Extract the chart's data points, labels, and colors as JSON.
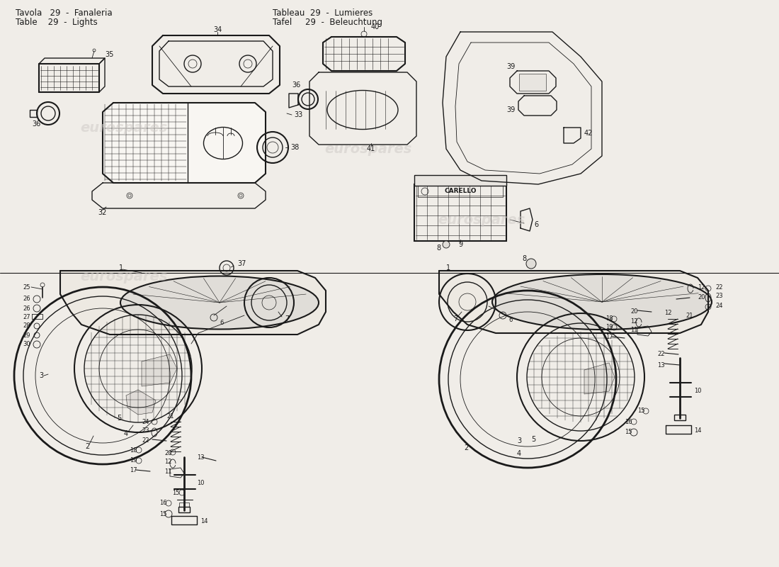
{
  "bg_color": "#f0ede8",
  "line_color": "#1a1a1a",
  "watermark_color": "#d0ccc8",
  "watermark_text": "eurospares",
  "header_fontsize": 8.5,
  "fig_width": 11.0,
  "fig_height": 8.0,
  "dpi": 100,
  "title_left_col": [
    "Tavola   29  -  Fanaleria",
    "Table    29  -  Lights"
  ],
  "title_right_col": [
    "Tableau  29  -  Lumieres",
    "Tafel     29  -  Beleuchtung"
  ]
}
